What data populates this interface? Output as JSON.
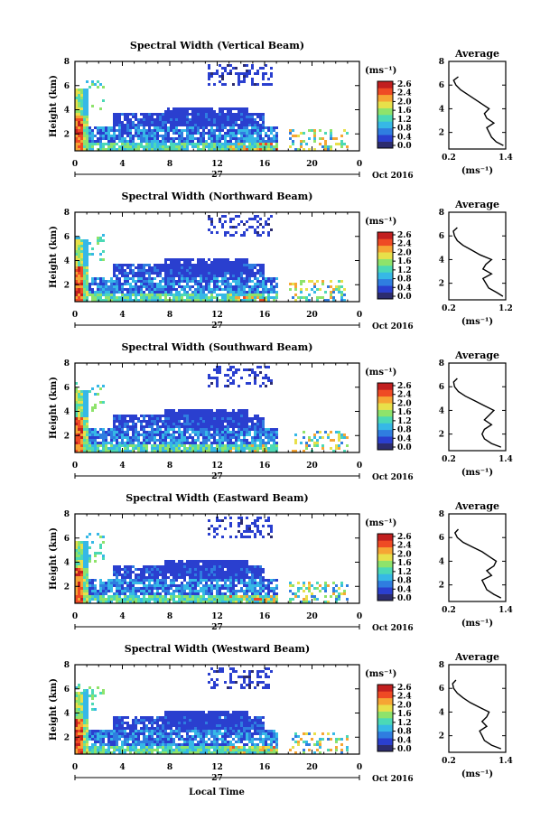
{
  "figure": {
    "xlabel": "Local Time",
    "date_label": "Oct 2016",
    "day_label": "27",
    "cbar_unit": "(ms⁻¹)",
    "avg_title": "Average",
    "avg_unit": "(ms⁻¹)",
    "ylabel": "Height (km)"
  },
  "colors": {
    "colormap": [
      "#2c2c6e",
      "#2a3fcf",
      "#2f7de0",
      "#36b8e6",
      "#4bd9b6",
      "#8ee36b",
      "#e8e04a",
      "#f6a534",
      "#ef4a24",
      "#c21f1f"
    ],
    "background": "#ffffff",
    "axis": "#000000"
  },
  "chart_data": [
    {
      "type": "heatmap",
      "title": "Spectral Width (Vertical Beam)",
      "xlabel": "Local Time",
      "ylabel": "Height (km)",
      "xlim": [
        0,
        24
      ],
      "ylim": [
        0.6,
        8
      ],
      "xticks": [
        "0",
        "4",
        "8",
        "12",
        "16",
        "20",
        "0"
      ],
      "yticks": [
        "2",
        "4",
        "6",
        "8"
      ],
      "colorbar": {
        "label": "(ms⁻¹)",
        "range": [
          0,
          2.6
        ],
        "ticks": [
          "2.6",
          "2.4",
          "2.0",
          "1.6",
          "1.2",
          "0.8",
          "0.4",
          "0.0"
        ]
      },
      "average": {
        "title": "Average",
        "xlabel": "(ms⁻¹)",
        "xlim": [
          0.2,
          1.4
        ],
        "xticks": [
          "0.2",
          "1.4"
        ],
        "ylim": [
          0.6,
          8
        ],
        "yticks": [
          "2",
          "4",
          "6",
          "8"
        ],
        "profile": [
          [
            1.35,
            0.9
          ],
          [
            1.2,
            1.2
          ],
          [
            1.1,
            1.6
          ],
          [
            1.05,
            2.0
          ],
          [
            1.0,
            2.4
          ],
          [
            1.15,
            2.8
          ],
          [
            1.0,
            3.2
          ],
          [
            0.95,
            3.6
          ],
          [
            1.05,
            4.0
          ],
          [
            0.9,
            4.4
          ],
          [
            0.75,
            4.8
          ],
          [
            0.6,
            5.2
          ],
          [
            0.45,
            5.6
          ],
          [
            0.35,
            6.0
          ],
          [
            0.3,
            6.4
          ],
          [
            0.4,
            6.7
          ]
        ]
      }
    },
    {
      "type": "heatmap",
      "title": "Spectral Width (Northward Beam)",
      "xlabel": "Local Time",
      "ylabel": "Height (km)",
      "xlim": [
        0,
        24
      ],
      "ylim": [
        0.6,
        8
      ],
      "xticks": [
        "0",
        "4",
        "8",
        "12",
        "16",
        "20",
        "0"
      ],
      "yticks": [
        "2",
        "4",
        "6",
        "8"
      ],
      "colorbar": {
        "label": "(ms⁻¹)",
        "range": [
          0,
          2.6
        ],
        "ticks": [
          "2.6",
          "2.4",
          "2.0",
          "1.6",
          "1.2",
          "0.8",
          "0.4",
          "0.0"
        ]
      },
      "average": {
        "title": "Average",
        "xlabel": "(ms⁻¹)",
        "xlim": [
          0.2,
          1.2
        ],
        "xticks": [
          "0.2",
          "1.2"
        ],
        "ylim": [
          0.6,
          8
        ],
        "yticks": [
          "2",
          "4",
          "6",
          "8"
        ],
        "profile": [
          [
            1.15,
            0.9
          ],
          [
            1.05,
            1.2
          ],
          [
            0.9,
            1.6
          ],
          [
            0.85,
            2.0
          ],
          [
            0.8,
            2.4
          ],
          [
            0.95,
            2.8
          ],
          [
            0.8,
            3.2
          ],
          [
            0.85,
            3.6
          ],
          [
            0.95,
            4.0
          ],
          [
            0.75,
            4.4
          ],
          [
            0.6,
            4.8
          ],
          [
            0.45,
            5.2
          ],
          [
            0.35,
            5.6
          ],
          [
            0.3,
            6.0
          ],
          [
            0.28,
            6.4
          ],
          [
            0.35,
            6.7
          ]
        ]
      }
    },
    {
      "type": "heatmap",
      "title": "Spectral Width (Southward Beam)",
      "xlabel": "Local Time",
      "ylabel": "Height (km)",
      "xlim": [
        0,
        24
      ],
      "ylim": [
        0.6,
        8
      ],
      "xticks": [
        "0",
        "4",
        "8",
        "12",
        "16",
        "20",
        "0"
      ],
      "yticks": [
        "2",
        "4",
        "6",
        "8"
      ],
      "colorbar": {
        "label": "(ms⁻¹)",
        "range": [
          0,
          2.6
        ],
        "ticks": [
          "2.6",
          "2.4",
          "2.0",
          "1.6",
          "1.2",
          "0.8",
          "0.4",
          "0.0"
        ]
      },
      "average": {
        "title": "Average",
        "xlabel": "(ms⁻¹)",
        "xlim": [
          0.2,
          1.4
        ],
        "xticks": [
          "0.2",
          "1.4"
        ],
        "ylim": [
          0.6,
          8
        ],
        "yticks": [
          "2",
          "4",
          "6",
          "8"
        ],
        "profile": [
          [
            1.3,
            0.9
          ],
          [
            1.1,
            1.2
          ],
          [
            0.95,
            1.6
          ],
          [
            0.9,
            2.0
          ],
          [
            0.95,
            2.4
          ],
          [
            1.1,
            2.8
          ],
          [
            0.95,
            3.2
          ],
          [
            1.05,
            3.6
          ],
          [
            1.15,
            4.0
          ],
          [
            0.95,
            4.4
          ],
          [
            0.75,
            4.8
          ],
          [
            0.55,
            5.2
          ],
          [
            0.4,
            5.6
          ],
          [
            0.32,
            6.0
          ],
          [
            0.3,
            6.4
          ],
          [
            0.38,
            6.7
          ]
        ]
      }
    },
    {
      "type": "heatmap",
      "title": "Spectral Width (Eastward Beam)",
      "xlabel": "Local Time",
      "ylabel": "Height (km)",
      "xlim": [
        0,
        24
      ],
      "ylim": [
        0.6,
        8
      ],
      "xticks": [
        "0",
        "4",
        "8",
        "12",
        "16",
        "20",
        "0"
      ],
      "yticks": [
        "2",
        "4",
        "6",
        "8"
      ],
      "colorbar": {
        "label": "(ms⁻¹)",
        "range": [
          0,
          2.6
        ],
        "ticks": [
          "2.6",
          "2.4",
          "2.0",
          "1.6",
          "1.2",
          "0.8",
          "0.4",
          "0.0"
        ]
      },
      "average": {
        "title": "Average",
        "xlabel": "(ms⁻¹)",
        "xlim": [
          0.2,
          1.4
        ],
        "xticks": [
          "0.2",
          "1.4"
        ],
        "ylim": [
          0.6,
          8
        ],
        "yticks": [
          "2",
          "4",
          "6",
          "8"
        ],
        "profile": [
          [
            1.3,
            0.9
          ],
          [
            1.15,
            1.2
          ],
          [
            1.0,
            1.6
          ],
          [
            0.95,
            2.0
          ],
          [
            0.9,
            2.4
          ],
          [
            1.1,
            2.8
          ],
          [
            1.0,
            3.2
          ],
          [
            1.15,
            3.6
          ],
          [
            1.2,
            4.0
          ],
          [
            1.05,
            4.4
          ],
          [
            0.9,
            4.8
          ],
          [
            0.7,
            5.2
          ],
          [
            0.5,
            5.6
          ],
          [
            0.38,
            6.0
          ],
          [
            0.33,
            6.4
          ],
          [
            0.4,
            6.7
          ]
        ]
      }
    },
    {
      "type": "heatmap",
      "title": "Spectral Width (Westward Beam)",
      "xlabel": "Local Time",
      "ylabel": "Height (km)",
      "xlim": [
        0,
        24
      ],
      "ylim": [
        0.6,
        8
      ],
      "xticks": [
        "0",
        "4",
        "8",
        "12",
        "16",
        "20",
        "0"
      ],
      "yticks": [
        "2",
        "4",
        "6",
        "8"
      ],
      "colorbar": {
        "label": "(ms⁻¹)",
        "range": [
          0,
          2.6
        ],
        "ticks": [
          "2.6",
          "2.4",
          "2.0",
          "1.6",
          "1.2",
          "0.8",
          "0.4",
          "0.0"
        ]
      },
      "average": {
        "title": "Average",
        "xlabel": "(ms⁻¹)",
        "xlim": [
          0.2,
          1.4
        ],
        "xticks": [
          "0.2",
          "1.4"
        ],
        "ylim": [
          0.6,
          8
        ],
        "yticks": [
          "2",
          "4",
          "6",
          "8"
        ],
        "profile": [
          [
            1.3,
            0.9
          ],
          [
            1.1,
            1.2
          ],
          [
            0.95,
            1.6
          ],
          [
            0.9,
            2.0
          ],
          [
            0.85,
            2.4
          ],
          [
            1.0,
            2.8
          ],
          [
            0.9,
            3.2
          ],
          [
            1.0,
            3.6
          ],
          [
            1.05,
            4.0
          ],
          [
            0.85,
            4.4
          ],
          [
            0.65,
            4.8
          ],
          [
            0.5,
            5.2
          ],
          [
            0.38,
            5.6
          ],
          [
            0.3,
            6.0
          ],
          [
            0.28,
            6.4
          ],
          [
            0.35,
            6.7
          ]
        ]
      }
    }
  ]
}
